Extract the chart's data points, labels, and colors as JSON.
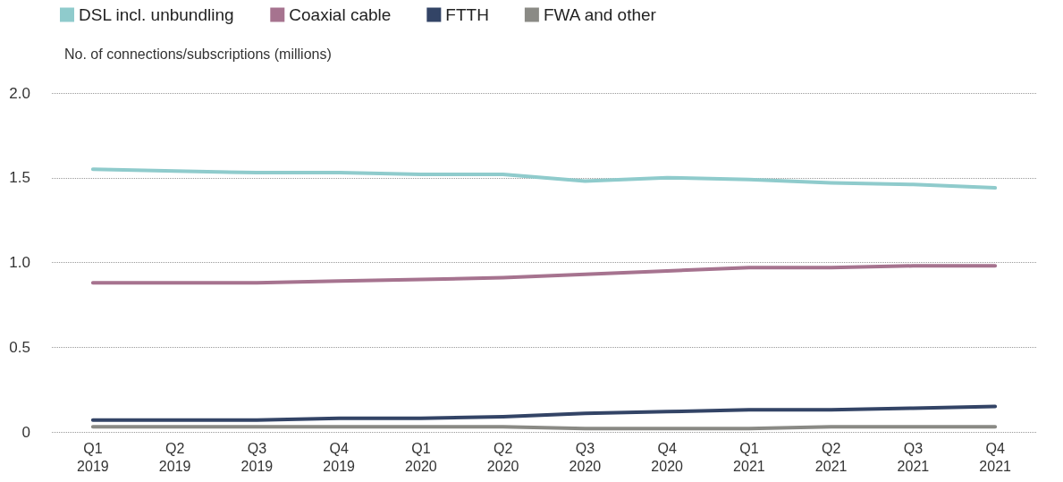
{
  "chart_data": {
    "type": "line",
    "ylabel": "No. of connections/subscriptions (millions)",
    "categories": [
      "Q1\n2019",
      "Q2\n2019",
      "Q3\n2019",
      "Q4\n2019",
      "Q1\n2020",
      "Q2\n2020",
      "Q3\n2020",
      "Q4\n2020",
      "Q1\n2021",
      "Q2\n2021",
      "Q3\n2021",
      "Q4\n2021"
    ],
    "series": [
      {
        "name": "DSL incl. unbundling",
        "color": "#8fcbcc",
        "values": [
          1.55,
          1.54,
          1.53,
          1.53,
          1.52,
          1.52,
          1.48,
          1.5,
          1.49,
          1.47,
          1.46,
          1.44
        ]
      },
      {
        "name": "Coaxial cable",
        "color": "#a6738f",
        "values": [
          0.88,
          0.88,
          0.88,
          0.89,
          0.9,
          0.91,
          0.93,
          0.95,
          0.97,
          0.97,
          0.98,
          0.98
        ]
      },
      {
        "name": "FTTH",
        "color": "#334466",
        "values": [
          0.07,
          0.07,
          0.07,
          0.08,
          0.08,
          0.09,
          0.11,
          0.12,
          0.13,
          0.13,
          0.14,
          0.15
        ]
      },
      {
        "name": "FWA and other",
        "color": "#8a8a85",
        "values": [
          0.03,
          0.03,
          0.03,
          0.03,
          0.03,
          0.03,
          0.02,
          0.02,
          0.02,
          0.03,
          0.03,
          0.03
        ]
      }
    ],
    "ylim": [
      0,
      2
    ],
    "yticks": [
      0,
      {
        "value": 0.5,
        "label": "0.5"
      },
      {
        "value": 1,
        "label": "1.0"
      },
      {
        "value": 1.5,
        "label": "1.5"
      },
      {
        "value": 2,
        "label": "2.0"
      }
    ],
    "grid": "y",
    "legend": "top left",
    "marker": "none",
    "line_style": "solid"
  }
}
